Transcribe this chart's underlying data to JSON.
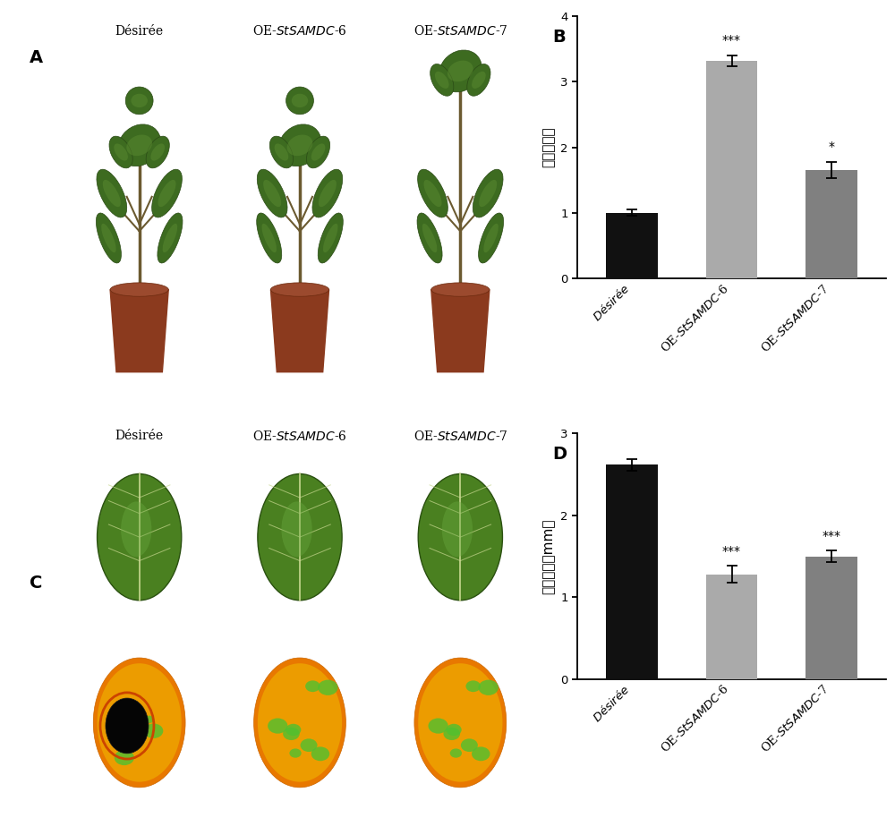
{
  "panel_B": {
    "categories": [
      "Désirée",
      "OE-StSAMDC-6",
      "OE-StSAMDC-7"
    ],
    "values": [
      1.0,
      3.32,
      1.65
    ],
    "errors": [
      0.05,
      0.08,
      0.12
    ],
    "colors": [
      "#111111",
      "#aaaaaa",
      "#808080"
    ],
    "ylabel": "相对表达量",
    "ylim": [
      0,
      4
    ],
    "yticks": [
      0,
      1,
      2,
      3,
      4
    ],
    "significance": [
      "",
      "***",
      "*"
    ],
    "label": "B"
  },
  "panel_D": {
    "categories": [
      "Désirée",
      "OE-StSAMDC-6",
      "OE-StSAMDC-7"
    ],
    "values": [
      2.62,
      1.28,
      1.5
    ],
    "errors": [
      0.07,
      0.1,
      0.07
    ],
    "colors": [
      "#111111",
      "#aaaaaa",
      "#808080"
    ],
    "ylabel": "病斑直径（mm）",
    "ylim": [
      0,
      3
    ],
    "yticks": [
      0,
      1,
      2,
      3
    ],
    "significance": [
      "",
      "***",
      "***"
    ],
    "label": "D"
  },
  "col_labels_italic": [
    "OE-StSAMDC-6",
    "OE-StSAMDC-7"
  ],
  "background_color": "#ffffff",
  "bar_width": 0.52,
  "font_size_tick": 9.5,
  "font_size_label": 11,
  "font_size_panel_label": 14,
  "font_size_sig": 10,
  "font_size_col_label": 10
}
